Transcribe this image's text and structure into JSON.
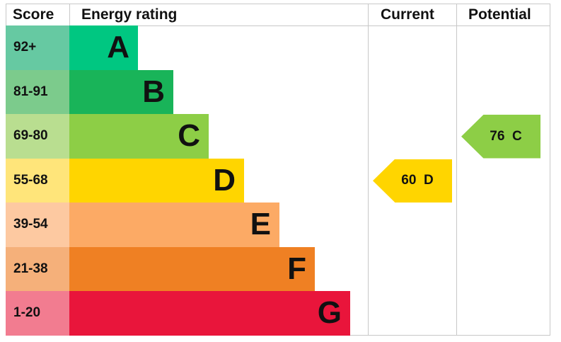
{
  "chart_data": {
    "type": "bar",
    "headers": {
      "score": "Score",
      "rating": "Energy rating",
      "current": "Current",
      "potential": "Potential"
    },
    "bands": [
      {
        "score": "92+",
        "letter": "A",
        "color": "#00c781",
        "score_color": "#66c9a2"
      },
      {
        "score": "81-91",
        "letter": "B",
        "color": "#19b459",
        "score_color": "#7ccb8c"
      },
      {
        "score": "69-80",
        "letter": "C",
        "color": "#8dce46",
        "score_color": "#b9de90"
      },
      {
        "score": "55-68",
        "letter": "D",
        "color": "#ffd500",
        "score_color": "#ffe57a"
      },
      {
        "score": "39-54",
        "letter": "E",
        "color": "#fcaa65",
        "score_color": "#fdc9a1"
      },
      {
        "score": "21-38",
        "letter": "F",
        "color": "#ef8023",
        "score_color": "#f5b07a"
      },
      {
        "score": "1-20",
        "letter": "G",
        "color": "#e9153b",
        "score_color": "#f27c90"
      }
    ],
    "current": {
      "value": 60,
      "letter": "D",
      "label": "60  D",
      "color": "#ffd500"
    },
    "potential": {
      "value": 76,
      "letter": "C",
      "label": "76  C",
      "color": "#8dce46"
    }
  }
}
